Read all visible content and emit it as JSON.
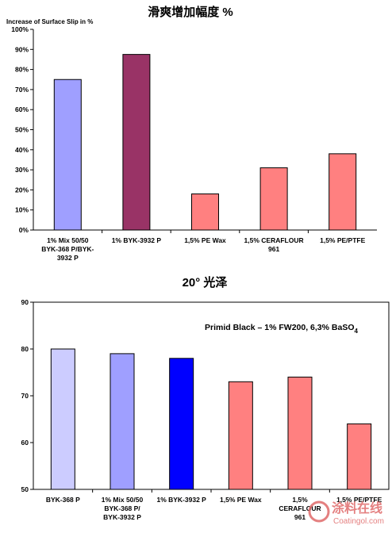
{
  "chart_data": [
    {
      "type": "bar",
      "title": "滑爽增加幅度 %",
      "ylabel": "Increase of Surface Slip in %",
      "ylim": [
        0,
        100
      ],
      "yticks": [
        "0%",
        "10%",
        "20%",
        "30%",
        "40%",
        "50%",
        "60%",
        "70%",
        "80%",
        "90%",
        "100%"
      ],
      "categories": [
        [
          "1% Mix 50/50",
          "BYK-368 P/BYK-",
          "3932 P"
        ],
        [
          "1% BYK-3932 P"
        ],
        [
          "1,5% PE Wax"
        ],
        [
          "1,5% CERAFLOUR",
          "961"
        ],
        [
          "1,5% PE/PTFE"
        ]
      ],
      "values": [
        75,
        87.5,
        18,
        31,
        38
      ],
      "colors": [
        "#9f9fff",
        "#993366",
        "#ff8080",
        "#ff8080",
        "#ff8080"
      ],
      "grid": false
    },
    {
      "type": "bar",
      "title": "20° 光泽",
      "annotation": "Primid Black – 1% FW200,  6,3% BaSO",
      "annotation_sub": "4",
      "ylim": [
        50,
        90
      ],
      "yticks": [
        "50",
        "60",
        "70",
        "80",
        "90"
      ],
      "categories": [
        [
          "BYK-368 P"
        ],
        [
          "1% Mix 50/50",
          "BYK-368 P/",
          "BYK-3932 P"
        ],
        [
          "1% BYK-3932 P"
        ],
        [
          "1,5% PE Wax"
        ],
        [
          "1,5%",
          "CERAFLOUR",
          "961"
        ],
        [
          "1,5% PE/PTFE"
        ]
      ],
      "values": [
        80,
        79,
        78,
        73,
        74,
        64
      ],
      "colors": [
        "#ccccff",
        "#9f9fff",
        "#0000ff",
        "#ff8080",
        "#ff8080",
        "#ff8080"
      ],
      "grid": false
    }
  ],
  "watermark": {
    "cn": "涂料在线",
    "en": "Coatingol.com"
  }
}
